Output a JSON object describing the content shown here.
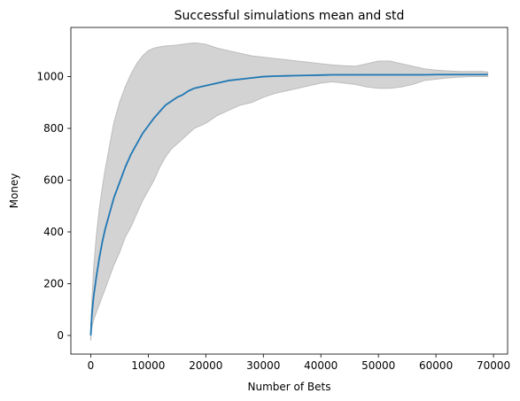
{
  "chart_data": {
    "type": "line",
    "title": "Successful simulations mean and std",
    "xlabel": "Number of Bets",
    "ylabel": "Money",
    "xlim": [
      -3450,
      72450
    ],
    "ylim": [
      -72,
      1190
    ],
    "xticks": [
      0,
      10000,
      20000,
      30000,
      40000,
      50000,
      60000,
      70000
    ],
    "yticks": [
      0,
      200,
      400,
      600,
      800,
      1000
    ],
    "grid": false,
    "legend": "none",
    "colors": {
      "mean_line": "#1f77b4",
      "std_band_fill": "#d3d3d3",
      "std_band_edge": "#bdbdbd"
    },
    "series": [
      {
        "x": [
          0,
          200,
          500,
          1000,
          1500,
          2000,
          2500,
          3000,
          3500,
          4000,
          5000,
          6000,
          7000,
          8000,
          9000,
          10000,
          11000,
          12000,
          13000,
          14000,
          15000,
          16000,
          17000,
          18000,
          19000,
          20000,
          22000,
          24000,
          26000,
          28000,
          30000,
          32000,
          34000,
          36000,
          38000,
          40000,
          42000,
          44000,
          46000,
          48000,
          50000,
          52000,
          54000,
          56000,
          58000,
          60000,
          62000,
          64000,
          66000,
          68000,
          69000
        ],
        "y": [
          0,
          80,
          150,
          230,
          300,
          360,
          410,
          450,
          490,
          530,
          590,
          650,
          700,
          740,
          780,
          810,
          840,
          865,
          890,
          905,
          920,
          930,
          945,
          955,
          960,
          965,
          975,
          985,
          990,
          995,
          1000,
          1002,
          1003,
          1004,
          1005,
          1006,
          1007,
          1007,
          1007,
          1007,
          1007,
          1007,
          1007,
          1007,
          1007,
          1008,
          1008,
          1008,
          1008,
          1008,
          1008
        ]
      },
      {
        "x": [
          0,
          200,
          500,
          1000,
          1500,
          2000,
          2500,
          3000,
          3500,
          4000,
          5000,
          6000,
          7000,
          8000,
          9000,
          10000,
          11000,
          12000,
          13000,
          14000,
          15000,
          16000,
          17000,
          18000,
          19000,
          20000,
          22000,
          24000,
          26000,
          28000,
          30000,
          32000,
          34000,
          36000,
          38000,
          40000,
          42000,
          44000,
          46000,
          48000,
          50000,
          52000,
          54000,
          56000,
          58000,
          60000,
          62000,
          64000,
          66000,
          68000,
          69000
        ],
        "y": [
          10,
          130,
          260,
          390,
          490,
          570,
          640,
          700,
          760,
          820,
          900,
          960,
          1010,
          1050,
          1080,
          1100,
          1110,
          1115,
          1118,
          1120,
          1122,
          1125,
          1128,
          1130,
          1128,
          1125,
          1110,
          1100,
          1090,
          1080,
          1075,
          1070,
          1065,
          1060,
          1055,
          1050,
          1045,
          1042,
          1040,
          1050,
          1060,
          1060,
          1050,
          1040,
          1030,
          1025,
          1022,
          1020,
          1020,
          1020,
          1018
        ]
      },
      {
        "x": [
          0,
          200,
          500,
          1000,
          1500,
          2000,
          2500,
          3000,
          3500,
          4000,
          5000,
          6000,
          7000,
          8000,
          9000,
          10000,
          11000,
          12000,
          13000,
          14000,
          15000,
          16000,
          17000,
          18000,
          19000,
          20000,
          22000,
          24000,
          26000,
          28000,
          30000,
          32000,
          34000,
          36000,
          38000,
          40000,
          42000,
          44000,
          46000,
          48000,
          50000,
          52000,
          54000,
          56000,
          58000,
          60000,
          62000,
          64000,
          66000,
          68000,
          69000
        ],
        "y": [
          -20,
          30,
          60,
          90,
          120,
          150,
          180,
          210,
          240,
          270,
          320,
          380,
          420,
          470,
          520,
          560,
          600,
          650,
          690,
          720,
          740,
          760,
          780,
          800,
          810,
          820,
          850,
          870,
          890,
          900,
          920,
          935,
          945,
          955,
          965,
          975,
          980,
          975,
          970,
          960,
          955,
          955,
          960,
          970,
          985,
          990,
          995,
          998,
          1000,
          1000,
          1000
        ]
      }
    ]
  }
}
